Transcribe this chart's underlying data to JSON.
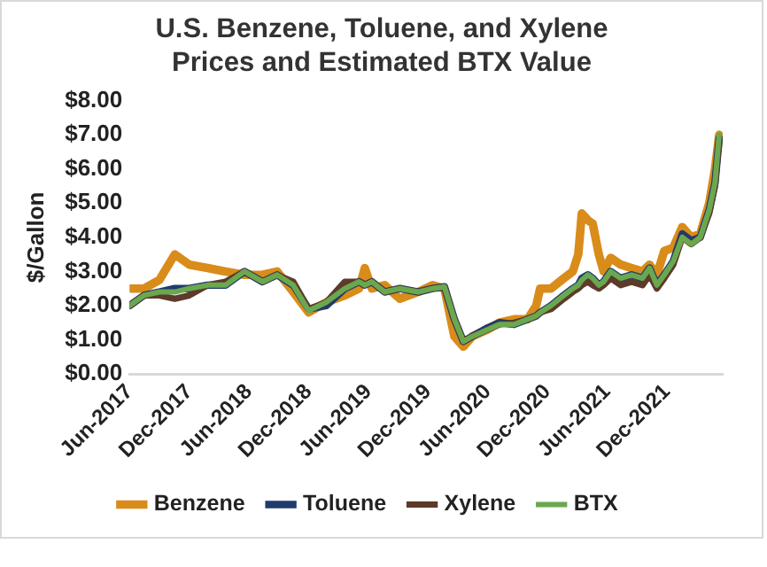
{
  "chart_data": {
    "type": "line",
    "title": "U.S. Benzene, Toluene, and Xylene Prices and Estimated BTX Value",
    "ylabel": "$/Gallon",
    "x": [
      "2017-06-01",
      "2017-07-15",
      "2017-09-01",
      "2017-10-18",
      "2017-12-01",
      "2018-01-27",
      "2018-03-21",
      "2018-05-18",
      "2018-07-12",
      "2018-08-27",
      "2018-10-15",
      "2018-12-01",
      "2019-01-25",
      "2019-03-21",
      "2019-05-03",
      "2019-05-21",
      "2019-06-12",
      "2019-07-21",
      "2019-09-06",
      "2019-11-01",
      "2019-12-15",
      "2020-01-21",
      "2020-02-21",
      "2020-03-18",
      "2020-04-15",
      "2020-06-01",
      "2020-07-06",
      "2020-08-21",
      "2020-10-01",
      "2020-10-28",
      "2020-11-09",
      "2020-12-12",
      "2021-01-21",
      "2021-02-18",
      "2021-03-04",
      "2021-03-15",
      "2021-04-03",
      "2021-04-18",
      "2021-05-06",
      "2021-05-21",
      "2021-06-12",
      "2021-07-12",
      "2021-08-15",
      "2021-09-18",
      "2021-10-09",
      "2021-11-01",
      "2021-11-24",
      "2021-12-21",
      "2022-01-18",
      "2022-02-15",
      "2022-03-12",
      "2022-04-09",
      "2022-04-27",
      "2022-05-09"
    ],
    "series": [
      {
        "name": "Benzene",
        "color": "#d98c1a",
        "values": [
          2.5,
          2.5,
          2.75,
          3.5,
          3.2,
          3.1,
          3.0,
          2.9,
          2.9,
          3.0,
          2.4,
          1.8,
          2.1,
          2.3,
          2.5,
          3.1,
          2.5,
          2.6,
          2.2,
          2.4,
          2.6,
          2.5,
          1.1,
          0.8,
          1.1,
          1.3,
          1.5,
          1.6,
          1.6,
          2.0,
          2.5,
          2.5,
          2.8,
          3.0,
          3.5,
          4.7,
          4.5,
          4.4,
          3.5,
          3.0,
          3.4,
          3.2,
          3.1,
          3.0,
          3.2,
          2.9,
          3.6,
          3.7,
          4.3,
          4.0,
          4.1,
          5.0,
          6.0,
          7.0
        ]
      },
      {
        "name": "Toluene",
        "color": "#1f3b6e",
        "values": [
          2.0,
          2.3,
          2.4,
          2.5,
          2.5,
          2.6,
          2.6,
          3.0,
          2.7,
          2.9,
          2.6,
          1.9,
          2.0,
          2.5,
          2.7,
          2.6,
          2.7,
          2.4,
          2.5,
          2.4,
          2.5,
          2.55,
          1.6,
          0.95,
          1.1,
          1.35,
          1.5,
          1.45,
          1.6,
          1.7,
          1.8,
          2.0,
          2.3,
          2.5,
          2.6,
          2.8,
          2.9,
          2.8,
          2.6,
          2.7,
          3.0,
          2.8,
          2.9,
          2.8,
          3.1,
          2.6,
          2.9,
          3.3,
          4.1,
          3.9,
          4.0,
          4.8,
          5.6,
          6.9
        ]
      },
      {
        "name": "Xylene",
        "color": "#5c3b2a",
        "values": [
          2.0,
          2.3,
          2.3,
          2.2,
          2.3,
          2.6,
          2.7,
          3.0,
          2.7,
          2.9,
          2.7,
          1.9,
          2.1,
          2.7,
          2.7,
          2.6,
          2.7,
          2.4,
          2.5,
          2.4,
          2.5,
          2.55,
          1.6,
          0.95,
          1.1,
          1.3,
          1.45,
          1.5,
          1.6,
          1.7,
          1.8,
          1.9,
          2.2,
          2.4,
          2.5,
          2.6,
          2.7,
          2.6,
          2.5,
          2.6,
          2.8,
          2.6,
          2.7,
          2.6,
          2.9,
          2.5,
          2.8,
          3.2,
          4.0,
          3.8,
          4.0,
          4.7,
          5.5,
          6.9
        ]
      },
      {
        "name": "BTX",
        "color": "#6aa84f",
        "values": [
          2.0,
          2.3,
          2.4,
          2.4,
          2.5,
          2.6,
          2.6,
          3.0,
          2.7,
          2.9,
          2.6,
          1.85,
          2.1,
          2.5,
          2.7,
          2.6,
          2.7,
          2.4,
          2.5,
          2.4,
          2.5,
          2.55,
          1.6,
          0.95,
          1.1,
          1.3,
          1.45,
          1.45,
          1.6,
          1.7,
          1.8,
          2.0,
          2.3,
          2.5,
          2.6,
          2.75,
          2.9,
          2.8,
          2.6,
          2.7,
          3.0,
          2.8,
          2.9,
          2.8,
          3.1,
          2.6,
          2.9,
          3.3,
          4.0,
          3.8,
          4.0,
          4.8,
          5.6,
          7.0
        ]
      }
    ],
    "xlim": [
      "2017-06-01",
      "2022-05-20"
    ],
    "xticks": [
      {
        "value": "2017-06",
        "label": "Jun-2017"
      },
      {
        "value": "2017-12",
        "label": "Dec-2017"
      },
      {
        "value": "2018-06",
        "label": "Jun-2018"
      },
      {
        "value": "2018-12",
        "label": "Dec-2018"
      },
      {
        "value": "2019-06",
        "label": "Jun-2019"
      },
      {
        "value": "2019-12",
        "label": "Dec-2019"
      },
      {
        "value": "2020-06",
        "label": "Jun-2020"
      },
      {
        "value": "2020-12",
        "label": "Dec-2020"
      },
      {
        "value": "2021-06",
        "label": "Jun-2021"
      },
      {
        "value": "2021-12",
        "label": "Dec-2021"
      }
    ],
    "ylim": [
      0,
      8
    ],
    "yticks": [
      {
        "value": 0,
        "label": "$0.00"
      },
      {
        "value": 1,
        "label": "$1.00"
      },
      {
        "value": 2,
        "label": "$2.00"
      },
      {
        "value": 3,
        "label": "$3.00"
      },
      {
        "value": 4,
        "label": "$4.00"
      },
      {
        "value": 5,
        "label": "$5.00"
      },
      {
        "value": 6,
        "label": "$6.00"
      },
      {
        "value": 7,
        "label": "$7.00"
      },
      {
        "value": 8,
        "label": "$8.00"
      }
    ],
    "grid": false,
    "legend": "bottom",
    "marker": "none",
    "line_style": "solid"
  }
}
